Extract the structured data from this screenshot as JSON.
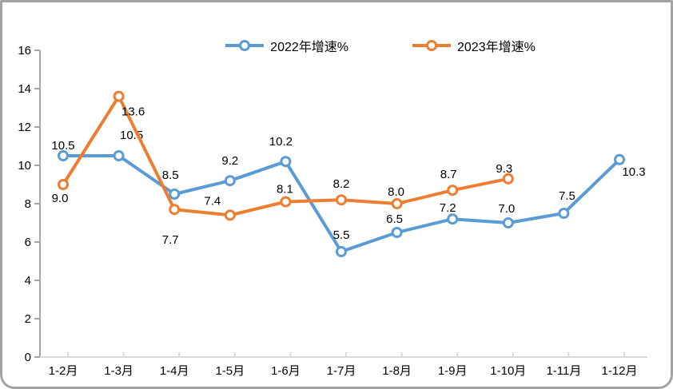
{
  "chart_data": {
    "type": "line",
    "title": "",
    "categories": [
      "1-2月",
      "1-3月",
      "1-4月",
      "1-5月",
      "1-6月",
      "1-7月",
      "1-8月",
      "1-9月",
      "1-10月",
      "1-11月",
      "1-12月"
    ],
    "series": [
      {
        "name": "2022年增速%",
        "color": "#5B9BD5",
        "values": [
          10.5,
          10.5,
          8.5,
          9.2,
          10.2,
          5.5,
          6.5,
          7.2,
          7.0,
          7.5,
          10.3
        ],
        "label_offsets": [
          [
            0,
            -13
          ],
          [
            16,
            -26
          ],
          [
            -5,
            -24
          ],
          [
            0,
            -25
          ],
          [
            -6,
            -25
          ],
          [
            0,
            -21
          ],
          [
            -3,
            -17
          ],
          [
            -6,
            -14
          ],
          [
            -2,
            -18
          ],
          [
            4,
            -22
          ],
          [
            18,
            15
          ]
        ]
      },
      {
        "name": "2023年增速%",
        "color": "#ED7D31",
        "values": [
          9.0,
          13.6,
          7.7,
          7.4,
          8.1,
          8.2,
          8.0,
          8.7,
          9.3,
          null,
          null
        ],
        "label_offsets": [
          [
            -4,
            17
          ],
          [
            18,
            19
          ],
          [
            -5,
            38
          ],
          [
            -22,
            -18
          ],
          [
            -1,
            -16
          ],
          [
            0,
            -20
          ],
          [
            -1,
            -15
          ],
          [
            -5,
            -20
          ],
          [
            -5,
            -13
          ]
        ]
      }
    ],
    "xlabel": "",
    "ylabel": "",
    "ylim": [
      0,
      16
    ],
    "ytick_step": 2,
    "grid": false,
    "legend_position": "top-center",
    "value_labels": true,
    "value_label_decimals": 1,
    "colors": {
      "y_axis": "#a6a6a6",
      "x_axis": "#d9d9d9",
      "tick_label": "#000000",
      "value_label": "#000000",
      "background": "#ffffff",
      "border": "#a2a2a2"
    }
  }
}
